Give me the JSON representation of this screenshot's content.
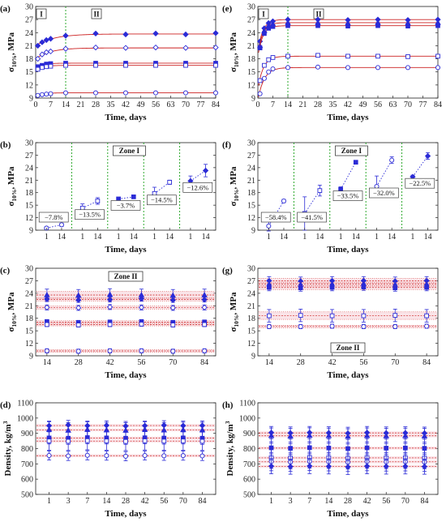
{
  "colors": {
    "blue": "#2b2bd6",
    "red": "#cc2020",
    "green": "#18a018",
    "pink_band": "#f4c4cc",
    "frame": "#222222"
  },
  "chart_data": [
    {
      "panel": "(a)",
      "type": "scatter",
      "xlabel": "Time, days",
      "ylabel": "σ10%, MPa",
      "ylabel_main": "σ",
      "ylabel_sub": "10%",
      "ylabel_rest": ", MPa",
      "xlim": [
        0,
        84
      ],
      "ylim": [
        9,
        30
      ],
      "xticks": [
        0,
        7,
        14,
        21,
        28,
        35,
        42,
        49,
        56,
        63,
        70,
        77,
        84
      ],
      "yticks": [
        9,
        12,
        15,
        18,
        21,
        24,
        27,
        30
      ],
      "zones": [
        {
          "label": "I",
          "x": 0
        },
        {
          "label": "II",
          "x": 14
        }
      ],
      "zone_divider": 14,
      "series": [
        {
          "marker": "diamond-filled",
          "x": [
            1,
            3,
            5,
            7,
            14,
            28,
            42,
            56,
            70,
            84
          ],
          "y": [
            21.0,
            21.8,
            22.3,
            22.6,
            23.3,
            23.8,
            23.6,
            23.8,
            23.6,
            23.9
          ],
          "fit": {
            "a": 21.0,
            "b": 2.7,
            "k": 0.12
          }
        },
        {
          "marker": "diamond-open",
          "x": [
            1,
            3,
            5,
            7,
            14,
            28,
            42,
            56,
            70,
            84
          ],
          "y": [
            18.0,
            19.0,
            19.5,
            19.7,
            20.3,
            20.6,
            20.5,
            20.6,
            20.5,
            20.6
          ],
          "fit": {
            "a": 18.0,
            "b": 2.5,
            "k": 0.15
          }
        },
        {
          "marker": "square-filled",
          "x": [
            1,
            3,
            5,
            7,
            14,
            28,
            42,
            56,
            70,
            84
          ],
          "y": [
            16.2,
            16.5,
            16.8,
            16.9,
            17.0,
            17.0,
            17.0,
            17.0,
            17.0,
            17.0
          ],
          "fit": {
            "a": 16.2,
            "b": 0.8,
            "k": 0.3
          }
        },
        {
          "marker": "square-open",
          "x": [
            1,
            3,
            5,
            7,
            14,
            28,
            42,
            56,
            70,
            84
          ],
          "y": [
            15.6,
            16.0,
            16.2,
            16.3,
            16.5,
            16.5,
            16.5,
            16.5,
            16.5,
            16.5
          ],
          "fit": {
            "a": 15.6,
            "b": 0.9,
            "k": 0.3
          }
        },
        {
          "marker": "circle-open",
          "x": [
            1,
            3,
            5,
            7,
            14,
            28,
            42,
            56,
            70,
            84
          ],
          "y": [
            9.6,
            9.8,
            9.9,
            10.0,
            10.2,
            10.2,
            10.2,
            10.2,
            10.2,
            10.2
          ],
          "fit": {
            "a": 9.6,
            "b": 0.6,
            "k": 0.3
          }
        }
      ]
    },
    {
      "panel": "(e)",
      "type": "scatter",
      "xlabel": "Time, days",
      "ylabel": "σ10%, MPa",
      "ylabel_main": "σ",
      "ylabel_sub": "10%",
      "ylabel_rest": ", MPa",
      "xlim": [
        0,
        84
      ],
      "ylim": [
        9,
        30
      ],
      "xticks": [
        0,
        7,
        14,
        21,
        28,
        35,
        42,
        49,
        56,
        63,
        70,
        77,
        84
      ],
      "yticks": [
        9,
        12,
        15,
        18,
        21,
        24,
        27,
        30
      ],
      "zones": [
        {
          "label": "I",
          "x": 0
        },
        {
          "label": "II",
          "x": 14
        }
      ],
      "zone_divider": 14,
      "series": [
        {
          "marker": "diamond-filled",
          "x": [
            1,
            3,
            5,
            7,
            14,
            28,
            42,
            56,
            70,
            84
          ],
          "y": [
            22.0,
            25.0,
            26.2,
            26.6,
            27.0,
            27.0,
            26.9,
            27.0,
            26.9,
            27.0
          ],
          "fit": {
            "a": 19.5,
            "b": 7.5,
            "k": 0.45
          }
        },
        {
          "marker": "triangle-filled",
          "x": [
            1,
            3,
            5,
            7,
            14,
            28,
            42,
            56,
            70,
            84
          ],
          "y": [
            21.0,
            24.4,
            25.6,
            26.0,
            26.3,
            26.3,
            26.2,
            26.3,
            26.2,
            26.3
          ],
          "fit": {
            "a": 19.0,
            "b": 7.3,
            "k": 0.45
          }
        },
        {
          "marker": "square-filled",
          "x": [
            1,
            3,
            5,
            7,
            14,
            28,
            42,
            56,
            70,
            84
          ],
          "y": [
            20.5,
            23.8,
            25.0,
            25.4,
            25.6,
            25.6,
            25.5,
            25.6,
            25.5,
            25.6
          ],
          "fit": {
            "a": 18.5,
            "b": 7.1,
            "k": 0.45
          }
        },
        {
          "marker": "square-open",
          "x": [
            1,
            3,
            5,
            7,
            14,
            28,
            42,
            56,
            70,
            84
          ],
          "y": [
            13.0,
            16.5,
            17.8,
            18.3,
            18.6,
            18.8,
            18.6,
            18.6,
            18.5,
            18.6
          ],
          "fit": {
            "a": 11.0,
            "b": 7.6,
            "k": 0.4
          }
        },
        {
          "marker": "circle-open",
          "x": [
            1,
            3,
            5,
            7,
            14,
            28,
            42,
            56,
            70,
            84
          ],
          "y": [
            10.0,
            13.5,
            15.0,
            15.7,
            16.0,
            16.1,
            16.0,
            16.0,
            16.0,
            16.0
          ],
          "fit": {
            "a": 8.5,
            "b": 7.5,
            "k": 0.35
          }
        }
      ]
    },
    {
      "panel": "(b)",
      "type": "scatter",
      "xlabel": "Time, days",
      "ylabel": "σ10%, MPa",
      "ylabel_main": "σ",
      "ylabel_sub": "10%",
      "ylabel_rest": ", MPa",
      "ylim": [
        9,
        30
      ],
      "yticks": [
        9,
        12,
        15,
        18,
        21,
        24,
        27,
        30
      ],
      "group_labels": [
        "1",
        "14"
      ],
      "zone_box": "Zone I",
      "groups": [
        {
          "marker": "circle-open",
          "y": [
            9.5,
            10.3
          ],
          "err": [
            0.3,
            0.4
          ],
          "pct": "−7.8%"
        },
        {
          "marker": "square-open",
          "y": [
            14.3,
            16.0
          ],
          "err": [
            1.0,
            0.8
          ],
          "pct": "−13.5%"
        },
        {
          "marker": "square-filled",
          "y": [
            16.5,
            17.0
          ],
          "err": [
            0.3,
            0.3
          ],
          "pct": "−3.7%"
        },
        {
          "marker": "square-open",
          "y": [
            17.8,
            20.5
          ],
          "err": [
            1.5,
            0.5
          ],
          "pct": "−14.5%"
        },
        {
          "marker": "diamond-filled",
          "y": [
            20.8,
            23.3
          ],
          "err": [
            1.2,
            1.5
          ],
          "pct": "−12.6%"
        }
      ]
    },
    {
      "panel": "(f)",
      "type": "scatter",
      "xlabel": "Time, days",
      "ylabel": "σ10%, MPa",
      "ylabel_main": "σ",
      "ylabel_sub": "10%",
      "ylabel_rest": ", MPa",
      "ylim": [
        9,
        30
      ],
      "yticks": [
        9,
        12,
        15,
        18,
        21,
        24,
        27,
        30
      ],
      "group_labels": [
        "1",
        "14"
      ],
      "zone_box": "Zone I",
      "groups": [
        {
          "marker": "circle-open",
          "y": [
            10.0,
            16.0
          ],
          "err": [
            1.2,
            0.4
          ],
          "pct": "−58.4%"
        },
        {
          "marker": "square-open",
          "y": [
            13.0,
            18.5
          ],
          "err": [
            4.0,
            1.3
          ],
          "pct": "−41.5%"
        },
        {
          "marker": "square-filled",
          "y": [
            18.8,
            25.3
          ],
          "err": [
            0.6,
            0.3
          ],
          "pct": "−33.5%"
        },
        {
          "marker": "circle-open",
          "y": [
            19.5,
            25.8
          ],
          "err": [
            2.5,
            0.8
          ],
          "pct": "−32.0%"
        },
        {
          "marker": "diamond-filled",
          "y": [
            21.8,
            26.8
          ],
          "err": [
            0.4,
            0.8
          ],
          "pct": "−22.5%"
        }
      ]
    },
    {
      "panel": "(c)",
      "type": "scatter",
      "xlabel": "Time, days",
      "ylabel": "σ10%, MPa",
      "ylabel_main": "σ",
      "ylabel_sub": "10%",
      "ylabel_rest": ", MPa",
      "xlim": [
        9,
        89
      ],
      "ylim": [
        9,
        30
      ],
      "xticks": [
        14,
        28,
        42,
        56,
        70,
        84
      ],
      "yticks": [
        9,
        12,
        15,
        18,
        21,
        24,
        27,
        30
      ],
      "zone_box": "Zone II",
      "series": [
        {
          "marker": "triangle-filled",
          "x": [
            14,
            28,
            42,
            56,
            70,
            84
          ],
          "y": [
            23.6,
            23.5,
            23.7,
            23.6,
            23.5,
            23.6
          ],
          "err": 1.4
        },
        {
          "marker": "diamond-filled",
          "x": [
            14,
            28,
            42,
            56,
            70,
            84
          ],
          "y": [
            22.6,
            22.4,
            22.5,
            22.7,
            22.4,
            22.5
          ],
          "err": 0.6
        },
        {
          "marker": "diamond-open",
          "x": [
            14,
            28,
            42,
            56,
            70,
            84
          ],
          "y": [
            20.6,
            20.5,
            20.7,
            20.6,
            20.5,
            20.6
          ],
          "err": 0.6
        },
        {
          "marker": "square-filled",
          "x": [
            14,
            28,
            42,
            56,
            70,
            84
          ],
          "y": [
            17.2,
            17.0,
            17.1,
            17.2,
            17.0,
            17.1
          ],
          "err": 0.5
        },
        {
          "marker": "square-open",
          "x": [
            14,
            28,
            42,
            56,
            70,
            84
          ],
          "y": [
            16.5,
            16.4,
            16.5,
            16.6,
            16.4,
            16.5
          ],
          "err": 0.5
        },
        {
          "marker": "circle-open",
          "x": [
            14,
            28,
            42,
            56,
            70,
            84
          ],
          "y": [
            10.2,
            10.1,
            10.2,
            10.2,
            10.1,
            10.2
          ],
          "err": 0.5
        }
      ]
    },
    {
      "panel": "(g)",
      "type": "scatter",
      "xlabel": "Time, days",
      "ylabel": "σ10%, MPa",
      "ylabel_main": "σ",
      "ylabel_sub": "10%",
      "ylabel_rest": ", MPa",
      "xlim": [
        9,
        89
      ],
      "ylim": [
        9,
        30
      ],
      "xticks": [
        14,
        28,
        42,
        56,
        70,
        84
      ],
      "yticks": [
        9,
        12,
        15,
        18,
        21,
        24,
        27,
        30
      ],
      "zone_box": "Zone II",
      "series": [
        {
          "marker": "diamond-filled",
          "x": [
            14,
            28,
            42,
            56,
            70,
            84
          ],
          "y": [
            27.0,
            26.9,
            27.0,
            27.0,
            26.9,
            27.0
          ],
          "err": 1.0
        },
        {
          "marker": "triangle-filled",
          "x": [
            14,
            28,
            42,
            56,
            70,
            84
          ],
          "y": [
            26.2,
            26.1,
            26.2,
            26.3,
            26.1,
            26.2
          ],
          "err": 0.8
        },
        {
          "marker": "square-filled",
          "x": [
            14,
            28,
            42,
            56,
            70,
            84
          ],
          "y": [
            25.4,
            25.3,
            25.4,
            25.5,
            25.3,
            25.4
          ],
          "err": 0.8
        },
        {
          "marker": "square-open",
          "x": [
            14,
            28,
            42,
            56,
            70,
            84
          ],
          "y": [
            18.6,
            18.7,
            18.6,
            18.6,
            18.7,
            18.6
          ],
          "err": 1.5
        },
        {
          "marker": "circle-open",
          "x": [
            14,
            28,
            42,
            56,
            70,
            84
          ],
          "y": [
            16.0,
            16.0,
            16.1,
            16.0,
            16.0,
            16.1
          ],
          "err": 0.5
        }
      ]
    },
    {
      "panel": "(d)",
      "type": "scatter",
      "xlabel": "Time, days",
      "ylabel": "Density, kg/m³",
      "ylabel_main": "Density, kg/m",
      "ylabel_sup": "3",
      "ylim": [
        500,
        1100
      ],
      "yticks": [
        500,
        600,
        700,
        800,
        900,
        1000,
        1100
      ],
      "categories": [
        "1",
        "3",
        "7",
        "14",
        "28",
        "42",
        "56",
        "70",
        "84"
      ],
      "series": [
        {
          "marker": "diamond-filled",
          "y": [
            950,
            955,
            950,
            952,
            948,
            950,
            953,
            950,
            951
          ],
          "err": 30
        },
        {
          "marker": "triangle-filled",
          "y": [
            925,
            920,
            925,
            922,
            920,
            925,
            921,
            923,
            922
          ],
          "err": 50
        },
        {
          "marker": "square-filled",
          "y": [
            870,
            868,
            872,
            870,
            868,
            871,
            869,
            870,
            868
          ],
          "err": 40
        },
        {
          "marker": "square-open",
          "y": [
            850,
            848,
            852,
            850,
            847,
            851,
            849,
            850,
            848
          ],
          "err": 60
        },
        {
          "marker": "circle-open",
          "y": [
            755,
            752,
            756,
            754,
            750,
            755,
            753,
            754,
            752
          ],
          "err": 30
        }
      ]
    },
    {
      "panel": "(h)",
      "type": "scatter",
      "xlabel": "Time, days",
      "ylabel": "Density, kg/m³",
      "ylabel_main": "Density, kg/m",
      "ylabel_sup": "3",
      "ylim": [
        500,
        1100
      ],
      "yticks": [
        500,
        600,
        700,
        800,
        900,
        1000,
        1100
      ],
      "categories": [
        "1",
        "3",
        "7",
        "14",
        "28",
        "42",
        "56",
        "70",
        "84"
      ],
      "series": [
        {
          "marker": "diamond-filled",
          "y": [
            905,
            902,
            905,
            903,
            900,
            905,
            902,
            903,
            901
          ],
          "err": 40
        },
        {
          "marker": "triangle-filled",
          "y": [
            885,
            882,
            886,
            884,
            880,
            885,
            883,
            884,
            882
          ],
          "err": 50
        },
        {
          "marker": "square-filled",
          "y": [
            805,
            802,
            806,
            804,
            800,
            805,
            803,
            804,
            802
          ],
          "err": 40
        },
        {
          "marker": "square-open",
          "y": [
            740,
            738,
            742,
            740,
            736,
            741,
            739,
            740,
            738
          ],
          "err": 70
        },
        {
          "marker": "circle-open",
          "y": [
            715,
            712,
            716,
            714,
            710,
            715,
            713,
            714,
            712
          ],
          "err": 60
        },
        {
          "marker": "diamond-filled",
          "y": [
            685,
            682,
            686,
            684,
            680,
            685,
            683,
            684,
            682
          ],
          "err": 50
        }
      ]
    }
  ]
}
